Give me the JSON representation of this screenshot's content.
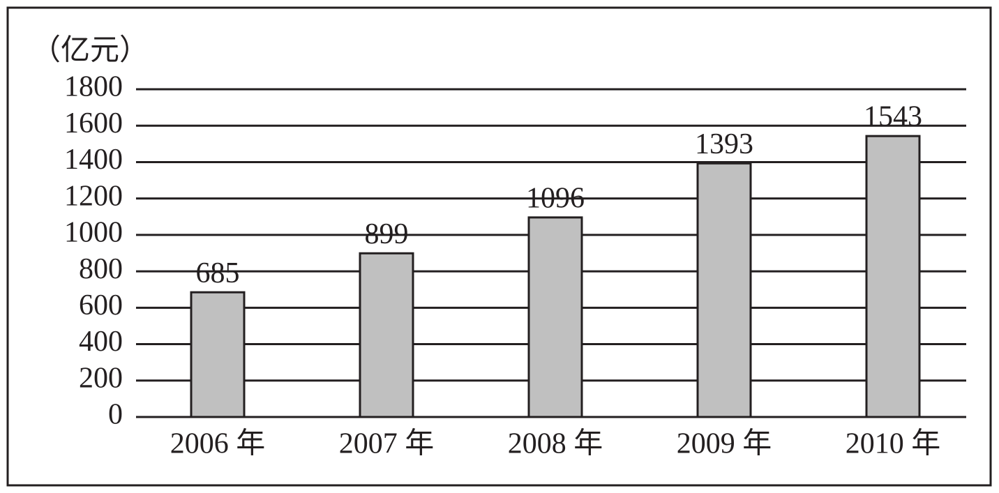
{
  "chart_data": {
    "type": "bar",
    "unit_label": "（亿元）",
    "categories": [
      "2006 年",
      "2007 年",
      "2008 年",
      "2009 年",
      "2010 年"
    ],
    "values": [
      685,
      899,
      1096,
      1393,
      1543
    ],
    "color": "#c0c0c0",
    "ylim": [
      0,
      1800
    ],
    "yticks": [
      0,
      200,
      400,
      600,
      800,
      1000,
      1200,
      1400,
      1600,
      1800
    ],
    "grid": true
  }
}
